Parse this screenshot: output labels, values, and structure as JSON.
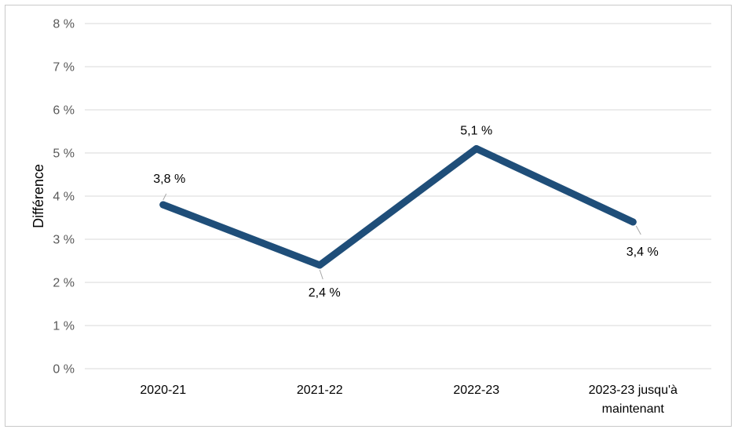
{
  "chart_data": {
    "type": "line",
    "title": "",
    "xlabel": "",
    "ylabel": "Différence",
    "categories": [
      "2020-21",
      "2021-22",
      "2022-23",
      "2023-23 jusqu'à maintenant"
    ],
    "category_lines": [
      [
        "2020-21"
      ],
      [
        "2021-22"
      ],
      [
        "2022-23"
      ],
      [
        "2023-23 jusqu'à",
        "maintenant"
      ]
    ],
    "series": [
      {
        "values": [
          3.8,
          2.4,
          5.1,
          3.4
        ],
        "labels": [
          "3,8 %",
          "2,4 %",
          "5,1 %",
          "3,4 %"
        ],
        "label_positions": [
          "above",
          "below",
          "above",
          "below"
        ],
        "color": "#1F4E79"
      }
    ],
    "ylim": [
      0,
      8
    ],
    "yticks": [
      0,
      1,
      2,
      3,
      4,
      5,
      6,
      7,
      8
    ],
    "ytick_labels": [
      "0 %",
      "1 %",
      "2 %",
      "3 %",
      "4 %",
      "5 %",
      "6 %",
      "7 %",
      "8 %"
    ],
    "grid": true,
    "grid_color": "#d9d9d9",
    "legend": "none"
  }
}
